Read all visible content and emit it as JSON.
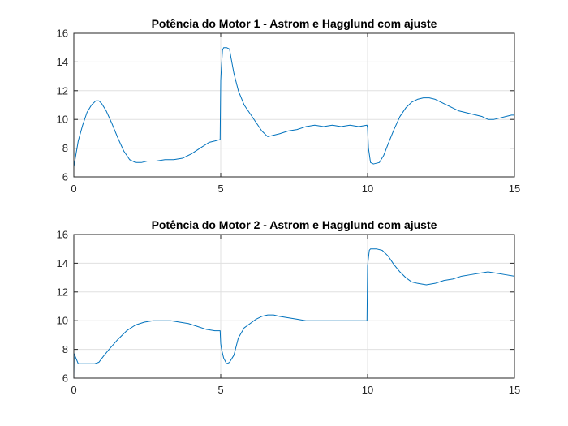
{
  "chart_data": [
    {
      "type": "line",
      "title": "Potência do Motor 1 - Astrom e Hagglund com ajuste",
      "xlabel": "",
      "ylabel": "",
      "xlim": [
        0,
        15
      ],
      "ylim": [
        6,
        16
      ],
      "xticks": [
        "0",
        "5",
        "10",
        "15"
      ],
      "yticks": [
        "6",
        "8",
        "10",
        "12",
        "14",
        "16"
      ],
      "grid": true,
      "color": "#0072BD",
      "series": [
        {
          "x": [
            0,
            0.05,
            0.15,
            0.3,
            0.45,
            0.6,
            0.75,
            0.85,
            0.95,
            1.1,
            1.3,
            1.5,
            1.7,
            1.9,
            2.1,
            2.3,
            2.5,
            2.8,
            3.1,
            3.4,
            3.7,
            4.0,
            4.3,
            4.6,
            4.8,
            4.98,
            5.0,
            5.02,
            5.06,
            5.1,
            5.2,
            5.3,
            5.35,
            5.45,
            5.6,
            5.8,
            6.0,
            6.2,
            6.4,
            6.6,
            6.8,
            7.0,
            7.3,
            7.6,
            7.9,
            8.2,
            8.5,
            8.8,
            9.1,
            9.4,
            9.7,
            9.98,
            10.0,
            10.03,
            10.1,
            10.2,
            10.4,
            10.55,
            10.7,
            10.9,
            11.1,
            11.3,
            11.5,
            11.7,
            11.9,
            12.1,
            12.3,
            12.5,
            12.7,
            12.9,
            13.1,
            13.3,
            13.5,
            13.7,
            13.9,
            14.1,
            14.3,
            14.5,
            14.7,
            14.9,
            15.0
          ],
          "y": [
            6.7,
            7.3,
            8.5,
            9.6,
            10.5,
            11.0,
            11.3,
            11.3,
            11.1,
            10.6,
            9.7,
            8.7,
            7.8,
            7.2,
            7.0,
            7.0,
            7.1,
            7.1,
            7.2,
            7.2,
            7.3,
            7.6,
            8.0,
            8.4,
            8.5,
            8.6,
            12.7,
            13.5,
            14.8,
            15.0,
            15.0,
            14.9,
            14.3,
            13.2,
            12.0,
            11.0,
            10.4,
            9.8,
            9.2,
            8.8,
            8.9,
            9.0,
            9.2,
            9.3,
            9.5,
            9.6,
            9.5,
            9.6,
            9.5,
            9.6,
            9.5,
            9.6,
            9.4,
            8.0,
            7.0,
            6.9,
            7.0,
            7.5,
            8.3,
            9.3,
            10.2,
            10.8,
            11.2,
            11.4,
            11.5,
            11.5,
            11.4,
            11.2,
            11.0,
            10.8,
            10.6,
            10.5,
            10.4,
            10.3,
            10.2,
            10.0,
            10.0,
            10.1,
            10.2,
            10.3,
            10.3
          ]
        }
      ]
    },
    {
      "type": "line",
      "title": "Potência do Motor 2 - Astrom e Hagglund com ajuste",
      "xlabel": "",
      "ylabel": "",
      "xlim": [
        0,
        15
      ],
      "ylim": [
        6,
        16
      ],
      "xticks": [
        "0",
        "5",
        "10",
        "15"
      ],
      "yticks": [
        "6",
        "8",
        "10",
        "12",
        "14",
        "16"
      ],
      "grid": true,
      "color": "#0072BD",
      "series": [
        {
          "x": [
            0,
            0.01,
            0.05,
            0.15,
            0.3,
            0.5,
            0.7,
            0.85,
            1.0,
            1.2,
            1.5,
            1.8,
            2.1,
            2.4,
            2.7,
            3.0,
            3.3,
            3.6,
            3.9,
            4.2,
            4.5,
            4.8,
            4.98,
            5.0,
            5.03,
            5.1,
            5.2,
            5.3,
            5.45,
            5.6,
            5.8,
            6.0,
            6.2,
            6.4,
            6.6,
            6.8,
            7.0,
            7.3,
            7.6,
            7.9,
            8.2,
            8.5,
            8.8,
            9.1,
            9.4,
            9.7,
            9.98,
            10.0,
            10.02,
            10.06,
            10.1,
            10.3,
            10.5,
            10.7,
            10.9,
            11.1,
            11.3,
            11.5,
            11.7,
            12.0,
            12.3,
            12.6,
            12.9,
            13.2,
            13.5,
            13.8,
            14.1,
            14.4,
            14.7,
            15.0
          ],
          "y": [
            6.0,
            7.7,
            7.5,
            7.0,
            7.0,
            7.0,
            7.0,
            7.1,
            7.5,
            8.0,
            8.7,
            9.3,
            9.7,
            9.9,
            10.0,
            10.0,
            10.0,
            9.9,
            9.8,
            9.6,
            9.4,
            9.3,
            9.3,
            8.4,
            8.0,
            7.4,
            7.0,
            7.1,
            7.6,
            8.8,
            9.5,
            9.8,
            10.1,
            10.3,
            10.4,
            10.4,
            10.3,
            10.2,
            10.1,
            10.0,
            10.0,
            10.0,
            10.0,
            10.0,
            10.0,
            10.0,
            10.0,
            13.8,
            14.2,
            14.9,
            15.0,
            15.0,
            14.9,
            14.5,
            13.9,
            13.4,
            13.0,
            12.7,
            12.6,
            12.5,
            12.6,
            12.8,
            12.9,
            13.1,
            13.2,
            13.3,
            13.4,
            13.3,
            13.2,
            13.1
          ]
        }
      ]
    }
  ]
}
